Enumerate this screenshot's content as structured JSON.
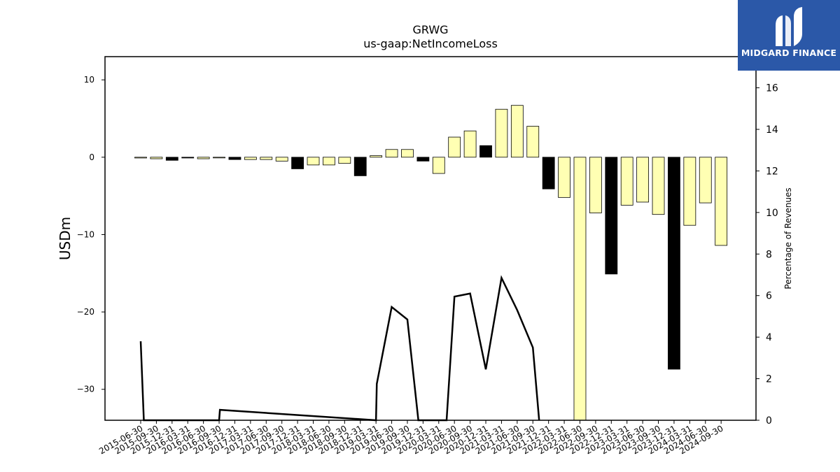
{
  "chart_data": {
    "type": "bar",
    "title": "GRWG",
    "subtitle": "us-gaap:NetIncomeLoss",
    "ylabel": "USDm",
    "y2label": "Percentage of Revenues",
    "ylim": [
      -34,
      13
    ],
    "y2lim": [
      0,
      17.5
    ],
    "yticks": [
      10,
      0,
      -10,
      -20,
      -30
    ],
    "y2ticks": [
      0,
      2,
      4,
      6,
      8,
      10,
      12,
      14,
      16
    ],
    "categories": [
      "2015-06-30",
      "2015-09-30",
      "2015-12-31",
      "2016-03-31",
      "2016-06-30",
      "2016-09-30",
      "2016-12-31",
      "2017-03-31",
      "2017-06-30",
      "2017-09-30",
      "2017-12-31",
      "2018-03-31",
      "2018-06-30",
      "2018-09-30",
      "2018-12-31",
      "2019-03-31",
      "2019-06-30",
      "2019-09-30",
      "2019-12-31",
      "2020-03-31",
      "2020-06-30",
      "2020-09-30",
      "2020-12-31",
      "2021-03-31",
      "2021-06-30",
      "2021-09-30",
      "2021-12-31",
      "2022-03-31",
      "2022-06-30",
      "2022-09-30",
      "2022-12-31",
      "2023-03-31",
      "2023-06-30",
      "2023-09-30",
      "2023-12-31",
      "2024-03-31",
      "2024-06-30",
      "2024-09-30"
    ],
    "series": [
      {
        "type": "bar",
        "values": [
          -0.1,
          -0.2,
          -0.4,
          -0.1,
          -0.2,
          -0.05,
          -0.3,
          -0.3,
          -0.3,
          -0.5,
          -1.5,
          -1.0,
          -1.0,
          -0.8,
          -2.4,
          0.2,
          1.0,
          1.0,
          -0.5,
          -2.1,
          2.6,
          3.4,
          1.5,
          6.2,
          6.7,
          4.0,
          -4.1,
          -5.2,
          -34,
          -7.2,
          -15.1,
          -6.2,
          -5.8,
          -7.4,
          -27.4,
          -8.8,
          -5.9,
          -11.4
        ],
        "colors": [
          "#ffffb3",
          "#ffffb3",
          "#000000",
          "#000000",
          "#ffffb3",
          "#ffffb3",
          "#000000",
          "#ffffb3",
          "#ffffb3",
          "#ffffb3",
          "#000000",
          "#ffffb3",
          "#ffffb3",
          "#ffffb3",
          "#000000",
          "#ffffb3",
          "#ffffb3",
          "#ffffb3",
          "#000000",
          "#ffffb3",
          "#ffffb3",
          "#ffffb3",
          "#000000",
          "#ffffb3",
          "#ffffb3",
          "#ffffb3",
          "#000000",
          "#ffffb3",
          "#ffffb3",
          "#ffffb3",
          "#000000",
          "#ffffb3",
          "#ffffb3",
          "#ffffb3",
          "#000000",
          "#ffffb3",
          "#ffffb3",
          "#ffffb3"
        ]
      },
      {
        "type": "line",
        "axis": "right",
        "x": [
          0,
          0.2,
          5,
          5.05,
          15,
          15.05,
          16,
          17,
          17.7,
          19.5,
          20,
          21,
          22,
          23,
          24,
          25,
          25.4
        ],
        "values": [
          3.8,
          0,
          0,
          0.5,
          0,
          1.75,
          5.45,
          4.85,
          0,
          0,
          5.95,
          6.1,
          2.45,
          6.85,
          5.3,
          3.5,
          0
        ],
        "color": "#000000"
      }
    ]
  },
  "logo": {
    "text": "MIDGARD FINANCE",
    "bg_color": "#2b58a8"
  }
}
